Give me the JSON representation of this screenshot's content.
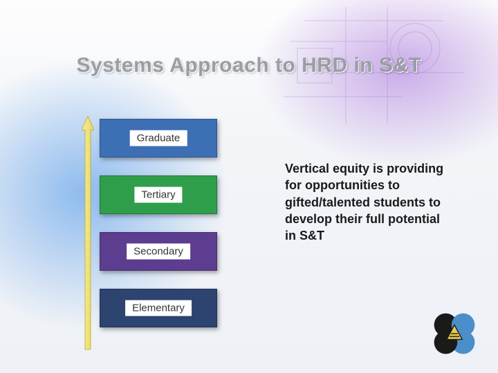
{
  "title": "Systems Approach to HRD in S&T",
  "title_color": "#9a9ea4",
  "title_fontsize": 30,
  "levels": [
    {
      "label": "Graduate",
      "color": "#3d6fb5"
    },
    {
      "label": "Tertiary",
      "color": "#2e9e4a"
    },
    {
      "label": "Secondary",
      "color": "#5d3d8f"
    },
    {
      "label": "Elementary",
      "color": "#2d4370"
    }
  ],
  "level_box": {
    "width": 170,
    "height": 56,
    "gap": 26,
    "label_bg": "#ffffff",
    "label_fontsize": 15
  },
  "arrow": {
    "shaft_fill": "#f2e27a",
    "shaft_stroke": "#b8a83a",
    "head_fill": "#d9cf5a"
  },
  "body_text": "Vertical equity is providing for opportunities to gifted/talented students to develop their full potential in S&T",
  "body_text_style": {
    "fontsize": 18,
    "weight": "bold",
    "color": "#1a1a1a"
  },
  "logo": {
    "petal_colors": [
      "#1a1a1a",
      "#4a8fc9",
      "#4a8fc9",
      "#1a1a1a"
    ],
    "center_triangle": "#e8c94a",
    "center_triangle_stroke": "#1a1a1a"
  },
  "background": {
    "base_gradient": [
      "#fdfdfd",
      "#f2f4f8",
      "#eef1f6"
    ],
    "accent_blue": "#3c8ce6",
    "accent_purple": "#aa78dc"
  }
}
